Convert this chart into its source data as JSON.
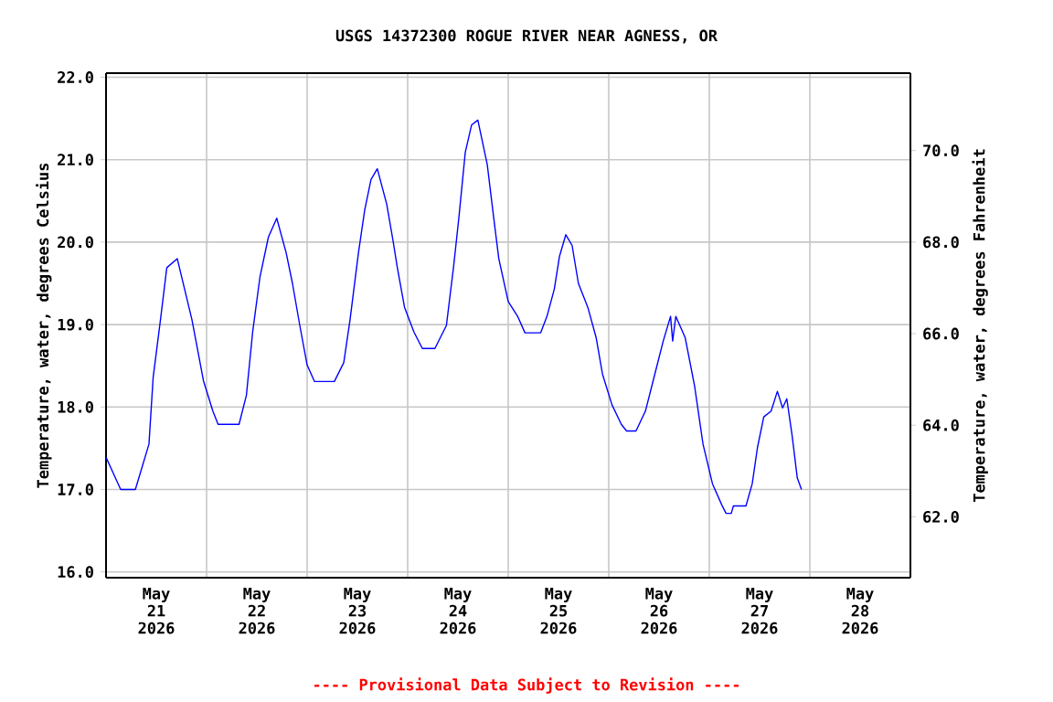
{
  "chart_data": {
    "type": "line",
    "title": "USGS 14372300 ROGUE RIVER NEAR AGNESS, OR",
    "ylabel": "Temperature, water, degrees Celsius",
    "y2label": "Temperature, water, degrees Fahrenheit",
    "annotations": [
      "---- Provisional Data Subject to Revision ----"
    ],
    "color": "#0000ff",
    "grid": true,
    "xlim": [
      "2026-05-21T00:00",
      "2026-05-29T00:00"
    ],
    "xticks": [
      {
        "value": "2026-05-21T12:00",
        "label": "May 21 2026"
      },
      {
        "value": "2026-05-22T12:00",
        "label": "May 22 2026"
      },
      {
        "value": "2026-05-23T12:00",
        "label": "May 23 2026"
      },
      {
        "value": "2026-05-24T12:00",
        "label": "May 24 2026"
      },
      {
        "value": "2026-05-25T12:00",
        "label": "May 25 2026"
      },
      {
        "value": "2026-05-26T12:00",
        "label": "May 26 2026"
      },
      {
        "value": "2026-05-27T12:00",
        "label": "May 27 2026"
      },
      {
        "value": "2026-05-28T12:00",
        "label": "May 28 2026"
      },
      {
        "value": "2026-05-22T00:00",
        "label": null
      },
      {
        "value": "2026-05-23T00:00",
        "label": null
      },
      {
        "value": "2026-05-24T00:00",
        "label": null
      },
      {
        "value": "2026-05-25T00:00",
        "label": null
      },
      {
        "value": "2026-05-26T00:00",
        "label": null
      },
      {
        "value": "2026-05-27T00:00",
        "label": null
      },
      {
        "value": "2026-05-28T00:00",
        "label": null
      }
    ],
    "ylim": [
      15.93,
      22.05
    ],
    "yticks": [
      {
        "value": 16,
        "label": "16.0"
      },
      {
        "value": 17,
        "label": "17.0"
      },
      {
        "value": 18,
        "label": "18.0"
      },
      {
        "value": 19,
        "label": "19.0"
      },
      {
        "value": 20,
        "label": "20.0"
      },
      {
        "value": 21,
        "label": "21.0"
      },
      {
        "value": 22,
        "label": "22.0"
      }
    ],
    "y2lim": [
      60.67,
      71.69
    ],
    "y2ticks": [
      {
        "value": 62,
        "label": "62.0"
      },
      {
        "value": 64,
        "label": "64.0"
      },
      {
        "value": 66,
        "label": "66.0"
      },
      {
        "value": 68,
        "label": "68.0"
      },
      {
        "value": 70,
        "label": "70.0"
      }
    ],
    "x": [
      "2026-05-21T00:00",
      "2026-05-21T03:30",
      "2026-05-21T07:00",
      "2026-05-21T10:15",
      "2026-05-21T11:15",
      "2026-05-21T13:00",
      "2026-05-21T14:30",
      "2026-05-21T17:00",
      "2026-05-21T20:30",
      "2026-05-21T23:15",
      "2026-05-22T01:30",
      "2026-05-22T02:45",
      "2026-05-22T07:45",
      "2026-05-22T09:30",
      "2026-05-22T11:00",
      "2026-05-22T12:45",
      "2026-05-22T14:45",
      "2026-05-22T16:45",
      "2026-05-22T19:00",
      "2026-05-22T20:30",
      "2026-05-22T22:15",
      "2026-05-23T00:00",
      "2026-05-23T01:45",
      "2026-05-23T06:30",
      "2026-05-23T08:45",
      "2026-05-23T10:15",
      "2026-05-23T12:15",
      "2026-05-23T13:45",
      "2026-05-23T15:15",
      "2026-05-23T16:45",
      "2026-05-23T19:00",
      "2026-05-23T20:30",
      "2026-05-23T21:30",
      "2026-05-23T23:15",
      "2026-05-24T01:30",
      "2026-05-24T03:30",
      "2026-05-24T06:30",
      "2026-05-24T09:15",
      "2026-05-24T11:00",
      "2026-05-24T12:15",
      "2026-05-24T13:45",
      "2026-05-24T15:15",
      "2026-05-24T16:45",
      "2026-05-24T19:00",
      "2026-05-24T20:30",
      "2026-05-24T21:45",
      "2026-05-25T00:00",
      "2026-05-25T02:15",
      "2026-05-25T04:00",
      "2026-05-25T07:45",
      "2026-05-25T09:15",
      "2026-05-25T11:00",
      "2026-05-25T12:15",
      "2026-05-25T13:45",
      "2026-05-25T15:15",
      "2026-05-25T16:45",
      "2026-05-25T19:00",
      "2026-05-25T21:00",
      "2026-05-25T22:30",
      "2026-05-26T00:45",
      "2026-05-26T03:00",
      "2026-05-26T04:15",
      "2026-05-26T06:30",
      "2026-05-26T08:45",
      "2026-05-26T11:00",
      "2026-05-26T13:00",
      "2026-05-26T14:45",
      "2026-05-26T15:15",
      "2026-05-26T16:00",
      "2026-05-26T18:15",
      "2026-05-26T20:30",
      "2026-05-26T22:30",
      "2026-05-27T00:45",
      "2026-05-27T03:00",
      "2026-05-27T04:00",
      "2026-05-27T05:15",
      "2026-05-27T05:45",
      "2026-05-27T08:45",
      "2026-05-27T10:15",
      "2026-05-27T11:30",
      "2026-05-27T13:00",
      "2026-05-27T14:45",
      "2026-05-27T16:15",
      "2026-05-27T17:30",
      "2026-05-27T18:30",
      "2026-05-27T19:45",
      "2026-05-27T21:00",
      "2026-05-27T22:00"
    ],
    "values": [
      17.39,
      17.0,
      17.0,
      17.55,
      18.36,
      19.06,
      19.69,
      19.8,
      19.06,
      18.32,
      17.95,
      17.79,
      17.79,
      18.14,
      18.91,
      19.58,
      20.06,
      20.29,
      19.87,
      19.5,
      18.99,
      18.51,
      18.31,
      18.31,
      18.54,
      19.06,
      19.87,
      20.39,
      20.76,
      20.89,
      20.46,
      20.02,
      19.7,
      19.21,
      18.91,
      18.71,
      18.71,
      18.99,
      19.72,
      20.31,
      21.09,
      21.42,
      21.48,
      20.94,
      20.31,
      19.8,
      19.28,
      19.1,
      18.9,
      18.9,
      19.1,
      19.43,
      19.83,
      20.09,
      19.96,
      19.5,
      19.21,
      18.84,
      18.4,
      18.03,
      17.79,
      17.71,
      17.71,
      17.95,
      18.4,
      18.8,
      19.1,
      18.8,
      19.1,
      18.84,
      18.25,
      17.55,
      17.07,
      16.81,
      16.71,
      16.71,
      16.8,
      16.8,
      17.07,
      17.51,
      17.88,
      17.95,
      18.19,
      17.99,
      18.1,
      17.66,
      17.14,
      17.0
    ]
  }
}
